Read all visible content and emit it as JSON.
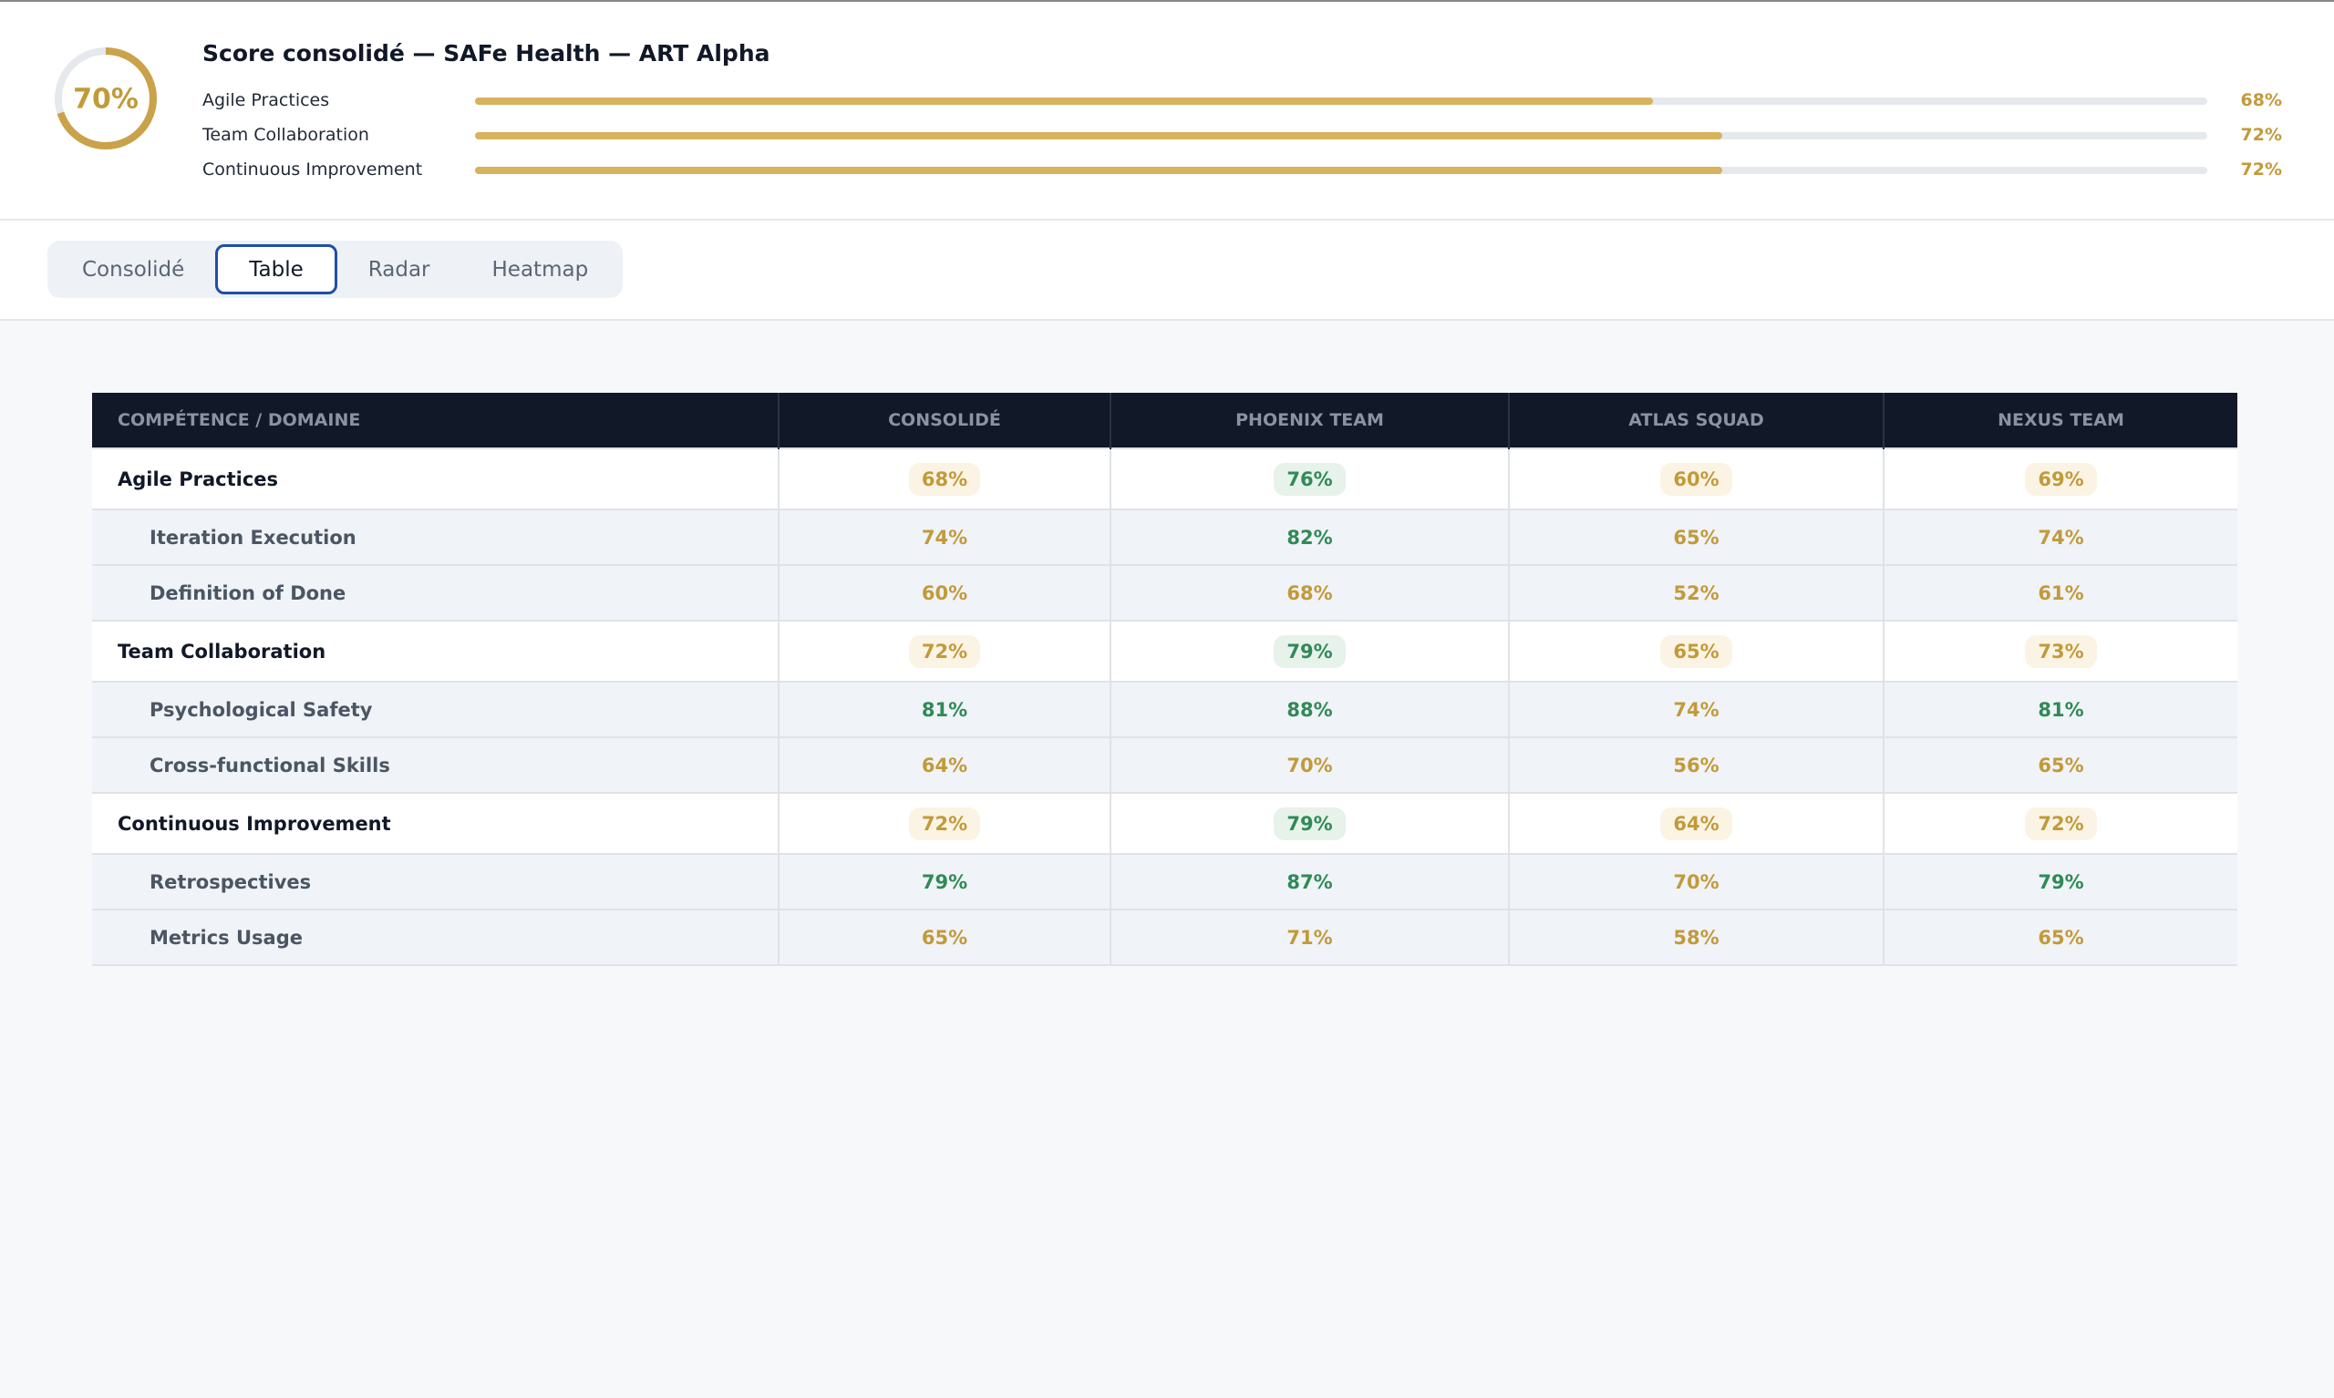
{
  "header": {
    "score": {
      "value": 70,
      "label": "70%"
    },
    "title": "Score consolidé — SAFe Health — ART Alpha",
    "bars": [
      {
        "label": "Agile Practices",
        "value": 68,
        "value_label": "68%"
      },
      {
        "label": "Team Collaboration",
        "value": 72,
        "value_label": "72%"
      },
      {
        "label": "Continuous Improvement",
        "value": 72,
        "value_label": "72%"
      }
    ],
    "bar_range": [
      0,
      100
    ],
    "bar_color": "#d6b35c",
    "track_color": "#e5e8ec"
  },
  "tabs": [
    "Consolidé",
    "Table",
    "Radar",
    "Heatmap"
  ],
  "active_tab": 1,
  "table": {
    "columns": [
      "COMPÉTENCE / DOMAINE",
      "CONSOLIDÉ",
      "PHOENIX TEAM",
      "ATLAS SQUAD",
      "NEXUS TEAM"
    ],
    "rows": [
      {
        "label": "Agile Practices",
        "kind": "group",
        "cells": [
          "68%",
          "76%",
          "60%",
          "69%"
        ]
      },
      {
        "label": "Iteration Execution",
        "kind": "item",
        "cells": [
          "74%",
          "82%",
          "65%",
          "74%"
        ]
      },
      {
        "label": "Definition of Done",
        "kind": "item",
        "cells": [
          "60%",
          "68%",
          "52%",
          "61%"
        ]
      },
      {
        "label": "Team Collaboration",
        "kind": "group",
        "cells": [
          "72%",
          "79%",
          "65%",
          "73%"
        ]
      },
      {
        "label": "Psychological Safety",
        "kind": "item",
        "cells": [
          "81%",
          "88%",
          "74%",
          "81%"
        ]
      },
      {
        "label": "Cross-functional Skills",
        "kind": "item",
        "cells": [
          "64%",
          "70%",
          "56%",
          "65%"
        ]
      },
      {
        "label": "Continuous Improvement",
        "kind": "group",
        "cells": [
          "72%",
          "79%",
          "64%",
          "72%"
        ]
      },
      {
        "label": "Retrospectives",
        "kind": "item",
        "cells": [
          "79%",
          "87%",
          "70%",
          "79%"
        ]
      },
      {
        "label": "Metrics Usage",
        "kind": "item",
        "cells": [
          "65%",
          "71%",
          "58%",
          "65%"
        ]
      }
    ]
  }
}
